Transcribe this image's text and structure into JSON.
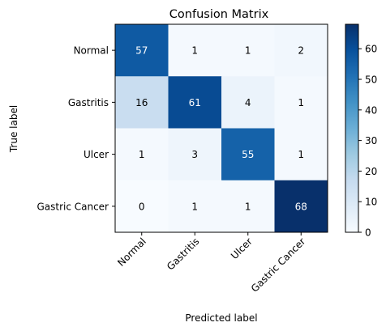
{
  "chart_data": {
    "type": "heatmap",
    "title": "Confusion Matrix",
    "xlabel": "Predicted label",
    "ylabel": "True label",
    "x_categories": [
      "Normal",
      "Gastritis",
      "Ulcer",
      "Gastric Cancer"
    ],
    "y_categories": [
      "Normal",
      "Gastritis",
      "Ulcer",
      "Gastric Cancer"
    ],
    "values": [
      [
        57,
        1,
        1,
        2
      ],
      [
        16,
        61,
        4,
        1
      ],
      [
        1,
        3,
        55,
        1
      ],
      [
        0,
        1,
        1,
        68
      ]
    ],
    "colormap": "Blues",
    "colorbar": {
      "vmin": 0,
      "vmax": 68,
      "ticks": [
        "0",
        "10",
        "20",
        "30",
        "40",
        "50",
        "60"
      ]
    },
    "text_color_dark_cells": "#ffffff",
    "text_color_light_cells": "#000000"
  }
}
